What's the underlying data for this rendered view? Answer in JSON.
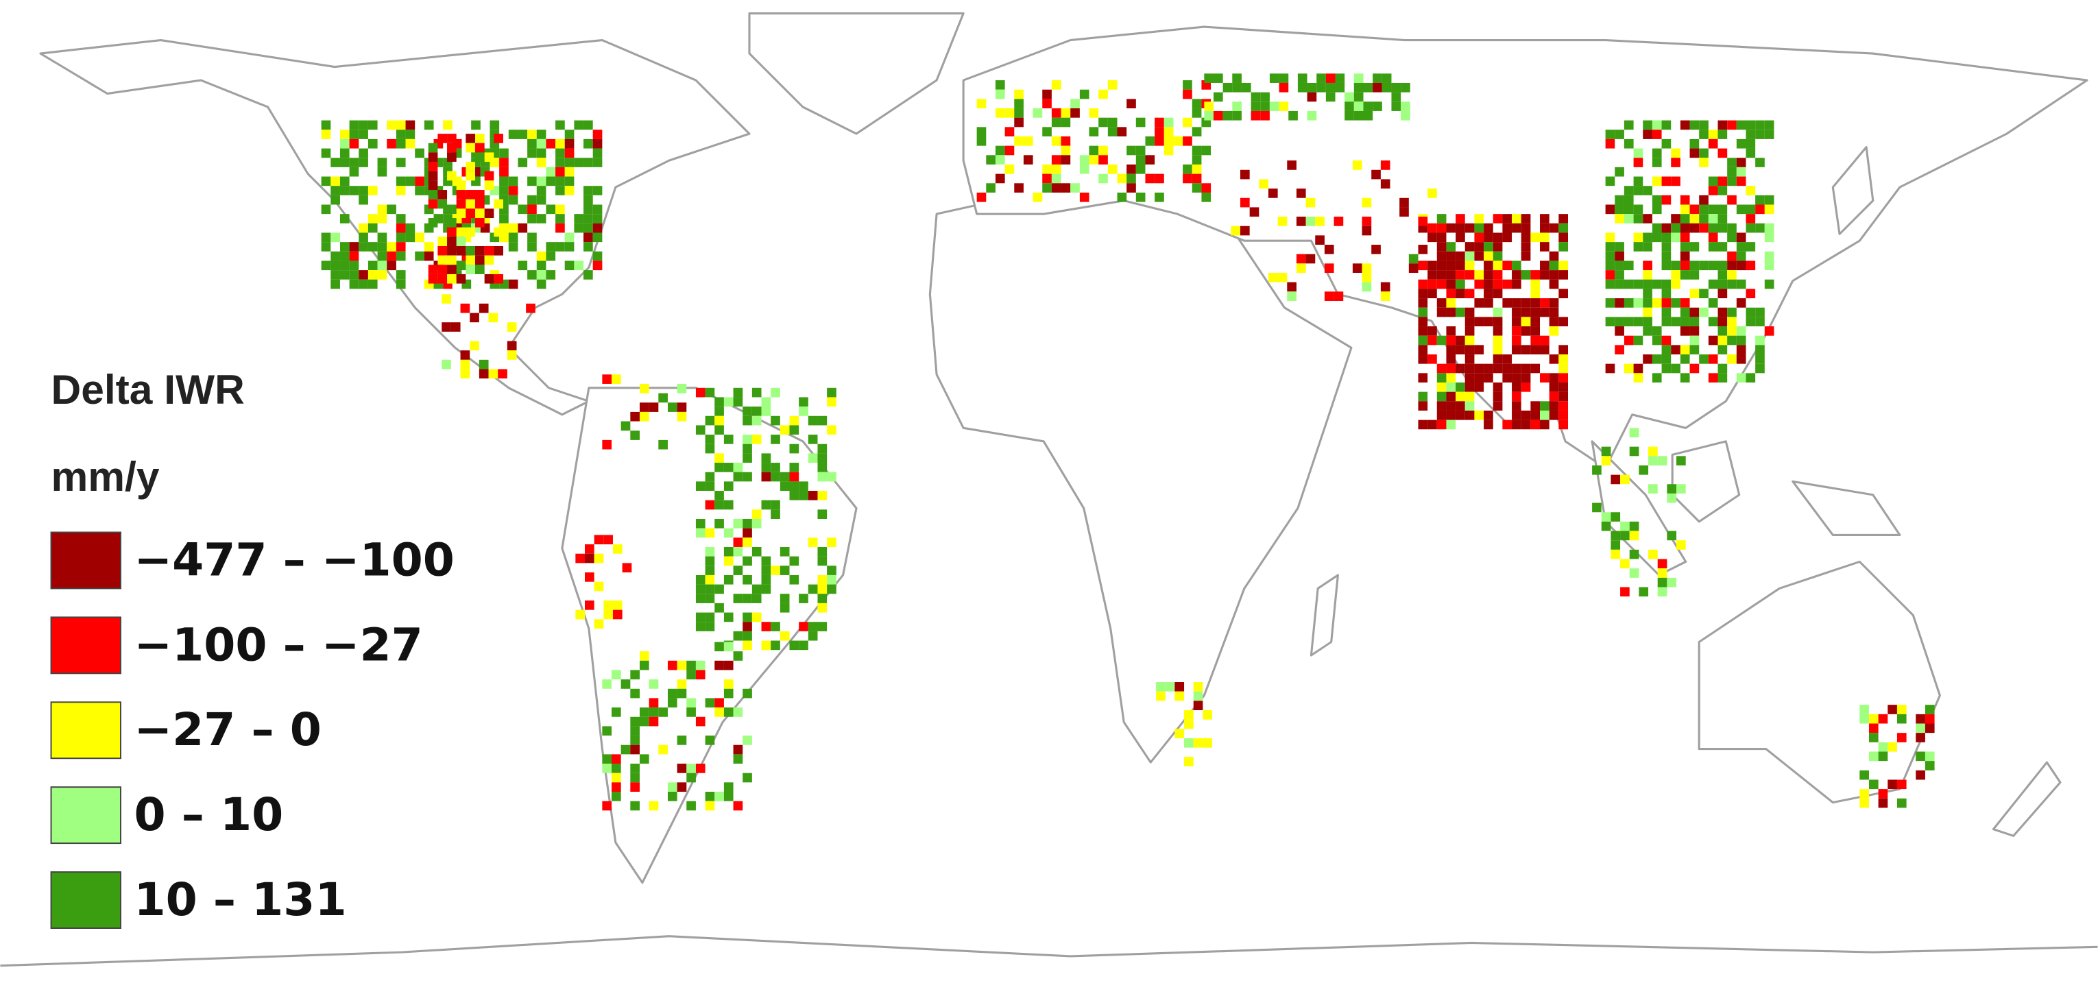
{
  "legend": {
    "title": "Delta IWR",
    "unit": "mm/y",
    "items": [
      {
        "label": "−477 – −100",
        "color": "#a00000"
      },
      {
        "label": "−100 – −27",
        "color": "#ff0000"
      },
      {
        "label": "−27 – 0",
        "color": "#ffff00"
      },
      {
        "label": "0 – 10",
        "color": "#a0ff80"
      },
      {
        "label": "10 – 131",
        "color": "#3a9e10"
      }
    ]
  }
}
